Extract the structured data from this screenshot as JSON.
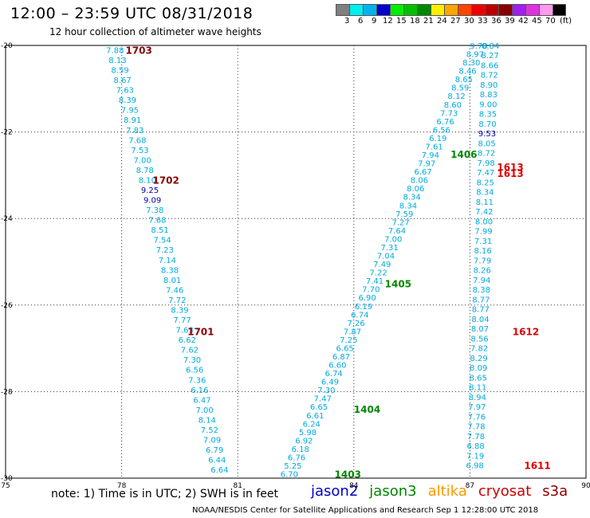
{
  "header": {
    "title": "12:00 – 23:59 UTC 08/31/2018",
    "subtitle": "12 hour collection of altimeter wave heights"
  },
  "color_scale": {
    "unit": "(ft)",
    "steps": [
      {
        "label": "3",
        "color": "#7f7f7f"
      },
      {
        "label": "6",
        "color": "#00eeee"
      },
      {
        "label": "9",
        "color": "#00b2ee"
      },
      {
        "label": "12",
        "color": "#0000cd"
      },
      {
        "label": "15",
        "color": "#00ee00"
      },
      {
        "label": "18",
        "color": "#00c000"
      },
      {
        "label": "21",
        "color": "#008800"
      },
      {
        "label": "24",
        "color": "#ffee00"
      },
      {
        "label": "27",
        "color": "#ffa500"
      },
      {
        "label": "30",
        "color": "#ff4500"
      },
      {
        "label": "33",
        "color": "#ee0000"
      },
      {
        "label": "36",
        "color": "#bb0000"
      },
      {
        "label": "39",
        "color": "#880000"
      },
      {
        "label": "42",
        "color": "#a020f0"
      },
      {
        "label": "45",
        "color": "#dd33dd"
      },
      {
        "label": "70",
        "color": "#ff99ee"
      },
      {
        "label": "",
        "color": "#000000"
      }
    ]
  },
  "footer": {
    "note": "note: 1) Time is in UTC; 2) SWH is in feet",
    "credit": "NOAA/NESDIS Center for Satellite Applications and Research    Sep  1 12:28:00 UTC 2018",
    "satellites": [
      {
        "name": "jason2",
        "color": "#0000cc"
      },
      {
        "name": "jason3",
        "color": "#008800"
      },
      {
        "name": "altika",
        "color": "#ff9900"
      },
      {
        "name": "cryosat",
        "color": "#cc0000"
      },
      {
        "name": "s3a",
        "color": "#880000"
      }
    ]
  },
  "chart_data": {
    "type": "scatter",
    "xlim": [
      75,
      90
    ],
    "ylim": [
      -30,
      -20
    ],
    "x_ticks": [
      "75",
      "78",
      "81",
      "84",
      "87",
      "90"
    ],
    "y_ticks": [
      "-20",
      "-22",
      "-24",
      "-26",
      "-28",
      "-30"
    ],
    "grid": true,
    "colors": {
      "light": "#00aadd",
      "dark": "#0000aa"
    },
    "tracks": [
      {
        "label_color": "#880000",
        "labels": [
          {
            "text": "1703",
            "lon": 78.1,
            "lat": -20.1
          },
          {
            "text": "1702",
            "lon": 78.8,
            "lat": -23.1
          },
          {
            "text": "1701",
            "lon": 79.7,
            "lat": -26.6
          }
        ],
        "start": [
          77.6,
          -20.1
        ],
        "end": [
          80.3,
          -29.8
        ],
        "values": [
          "7.88",
          "8.13",
          "8.59",
          "8.67",
          "7.63",
          "8.39",
          "7.95",
          "8.91",
          "7.83",
          "7.68",
          "7.53",
          "7.00",
          "8.78",
          "8.10",
          "9.25",
          "9.09",
          "7.38",
          "7.68",
          "8.51",
          "7.54",
          "7.23",
          "7.14",
          "8.38",
          "8.01",
          "7.46",
          "7.72",
          "8.39",
          "7.77",
          "7.63",
          "6.62",
          "7.62",
          "7.30",
          "6.56",
          "7.36",
          "6.16",
          "6.47",
          "7.00",
          "8.14",
          "7.52",
          "7.09",
          "6.79",
          "6.44",
          "6.64"
        ],
        "dark": [
          "9.25",
          "9.09"
        ]
      },
      {
        "label_color": "#008800",
        "labels": [
          {
            "text": "1406",
            "lon": 86.5,
            "lat": -22.5
          },
          {
            "text": "1405",
            "lon": 84.8,
            "lat": -25.5
          },
          {
            "text": "1404",
            "lon": 84.0,
            "lat": -28.4
          },
          {
            "text": "1403",
            "lon": 83.5,
            "lat": -29.9
          }
        ],
        "start": [
          87.0,
          -20.0
        ],
        "end": [
          82.1,
          -29.9
        ],
        "values": [
          "9.78",
          "8.97",
          "8.30",
          "8.46",
          "8.65",
          "8.59",
          "8.12",
          "8.60",
          "7.73",
          "6.76",
          "6.56",
          "6.19",
          "7.61",
          "7.94",
          "7.97",
          "6.67",
          "8.06",
          "8.06",
          "8.34",
          "8.34",
          "7.59",
          "7.27",
          "7.64",
          "7.00",
          "7.31",
          "7.04",
          "7.49",
          "7.22",
          "7.41",
          "7.70",
          "6.90",
          "6.19",
          "6.74",
          "7.26",
          "7.87",
          "7.25",
          "6.65",
          "6.87",
          "6.60",
          "6.74",
          "6.49",
          "7.30",
          "7.47",
          "6.65",
          "6.61",
          "6.24",
          "5.98",
          "6.92",
          "6.18",
          "6.76",
          "5.25",
          "6.70"
        ],
        "dark": []
      },
      {
        "label_color": "#dd0000",
        "labels": [
          {
            "text": "1613",
            "lon": 87.7,
            "lat": -22.8
          },
          {
            "text": "1613",
            "lon": 87.7,
            "lat": -22.95
          },
          {
            "text": "1612",
            "lon": 88.1,
            "lat": -26.6
          },
          {
            "text": "1611",
            "lon": 88.4,
            "lat": -29.7
          }
        ],
        "start": [
          87.3,
          -20.0
        ],
        "end": [
          86.9,
          -29.7
        ],
        "values": [
          "8.84",
          "8.27",
          "8.66",
          "8.72",
          "8.90",
          "8.83",
          "9.00",
          "8.35",
          "8.70",
          "9.53",
          "8.05",
          "8.72",
          "7.98",
          "7.47",
          "8.25",
          "8.34",
          "8.11",
          "7.42",
          "8.00",
          "7.99",
          "7.31",
          "8.16",
          "7.79",
          "8.26",
          "7.94",
          "8.38",
          "8.77",
          "8.77",
          "8.04",
          "8.07",
          "8.56",
          "7.82",
          "8.29",
          "8.09",
          "8.65",
          "8.11",
          "8.94",
          "7.97",
          "7.76",
          "7.78",
          "7.78",
          "6.88",
          "7.19",
          "6.98"
        ],
        "dark": [
          "9.53"
        ]
      }
    ]
  }
}
